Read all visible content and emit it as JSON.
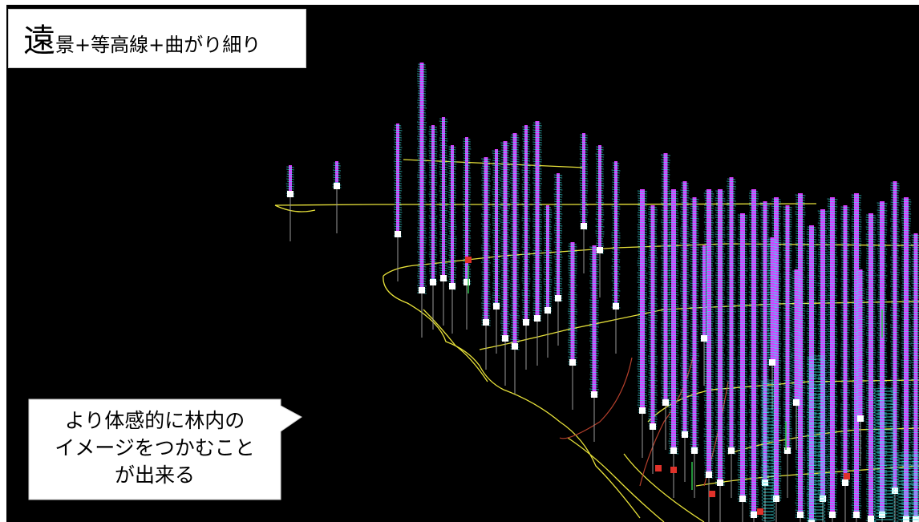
{
  "title": {
    "big_char": "遠",
    "rest": "景+等高線+曲がり細り"
  },
  "callout": {
    "lines": [
      "より体感的に林内の",
      "イメージをつかむこと",
      "が出来る"
    ]
  },
  "colors": {
    "background": "#000000",
    "contour": "#e8e23a",
    "stem_magenta": "#d63cff",
    "stem_cyan": "#3de8e8",
    "stem_white": "#f2f2f2",
    "stem_pole": "#9a9a9a",
    "path_red": "#b6402c",
    "label_bg": "#ffffff"
  }
}
